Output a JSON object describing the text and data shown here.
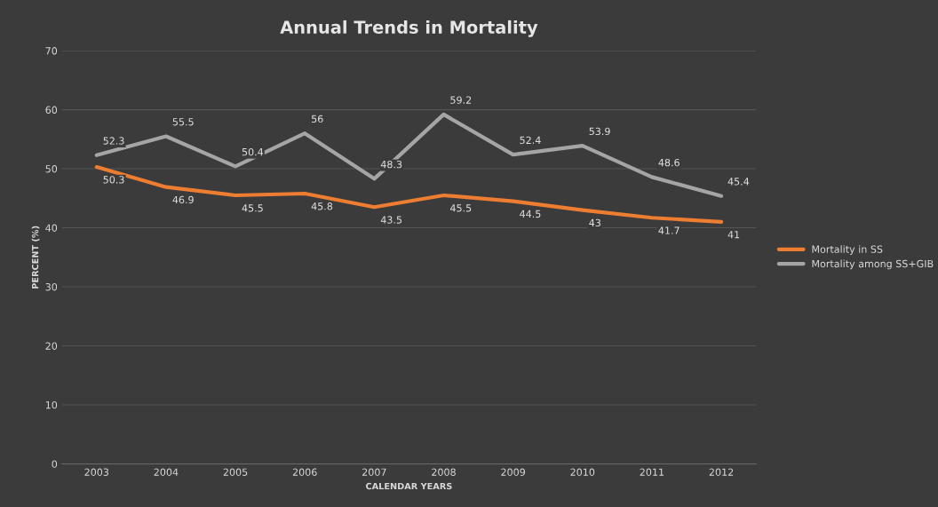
{
  "chart_data": {
    "type": "line",
    "title": "Annual Trends in Mortality",
    "xlabel": "CALENDAR YEARS",
    "ylabel": "PERCENT (%)",
    "categories": [
      "2003",
      "2004",
      "2005",
      "2006",
      "2007",
      "2008",
      "2009",
      "2010",
      "2011",
      "2012"
    ],
    "series": [
      {
        "name": "Mortality in SS",
        "color": "#ed7d31",
        "values": [
          50.3,
          46.9,
          45.5,
          45.8,
          43.5,
          45.5,
          44.5,
          43,
          41.7,
          41
        ]
      },
      {
        "name": "Mortality among SS+GIB",
        "color": "#a5a5a5",
        "values": [
          52.3,
          55.5,
          50.4,
          56,
          48.3,
          59.2,
          52.4,
          53.9,
          48.6,
          45.4
        ]
      }
    ],
    "ylim": [
      0,
      70
    ],
    "yticks": [
      0,
      10,
      20,
      30,
      40,
      50,
      60,
      70
    ],
    "grid": "y",
    "legend": "right",
    "data_labels": true,
    "marker": "none",
    "line_style": "solid"
  }
}
